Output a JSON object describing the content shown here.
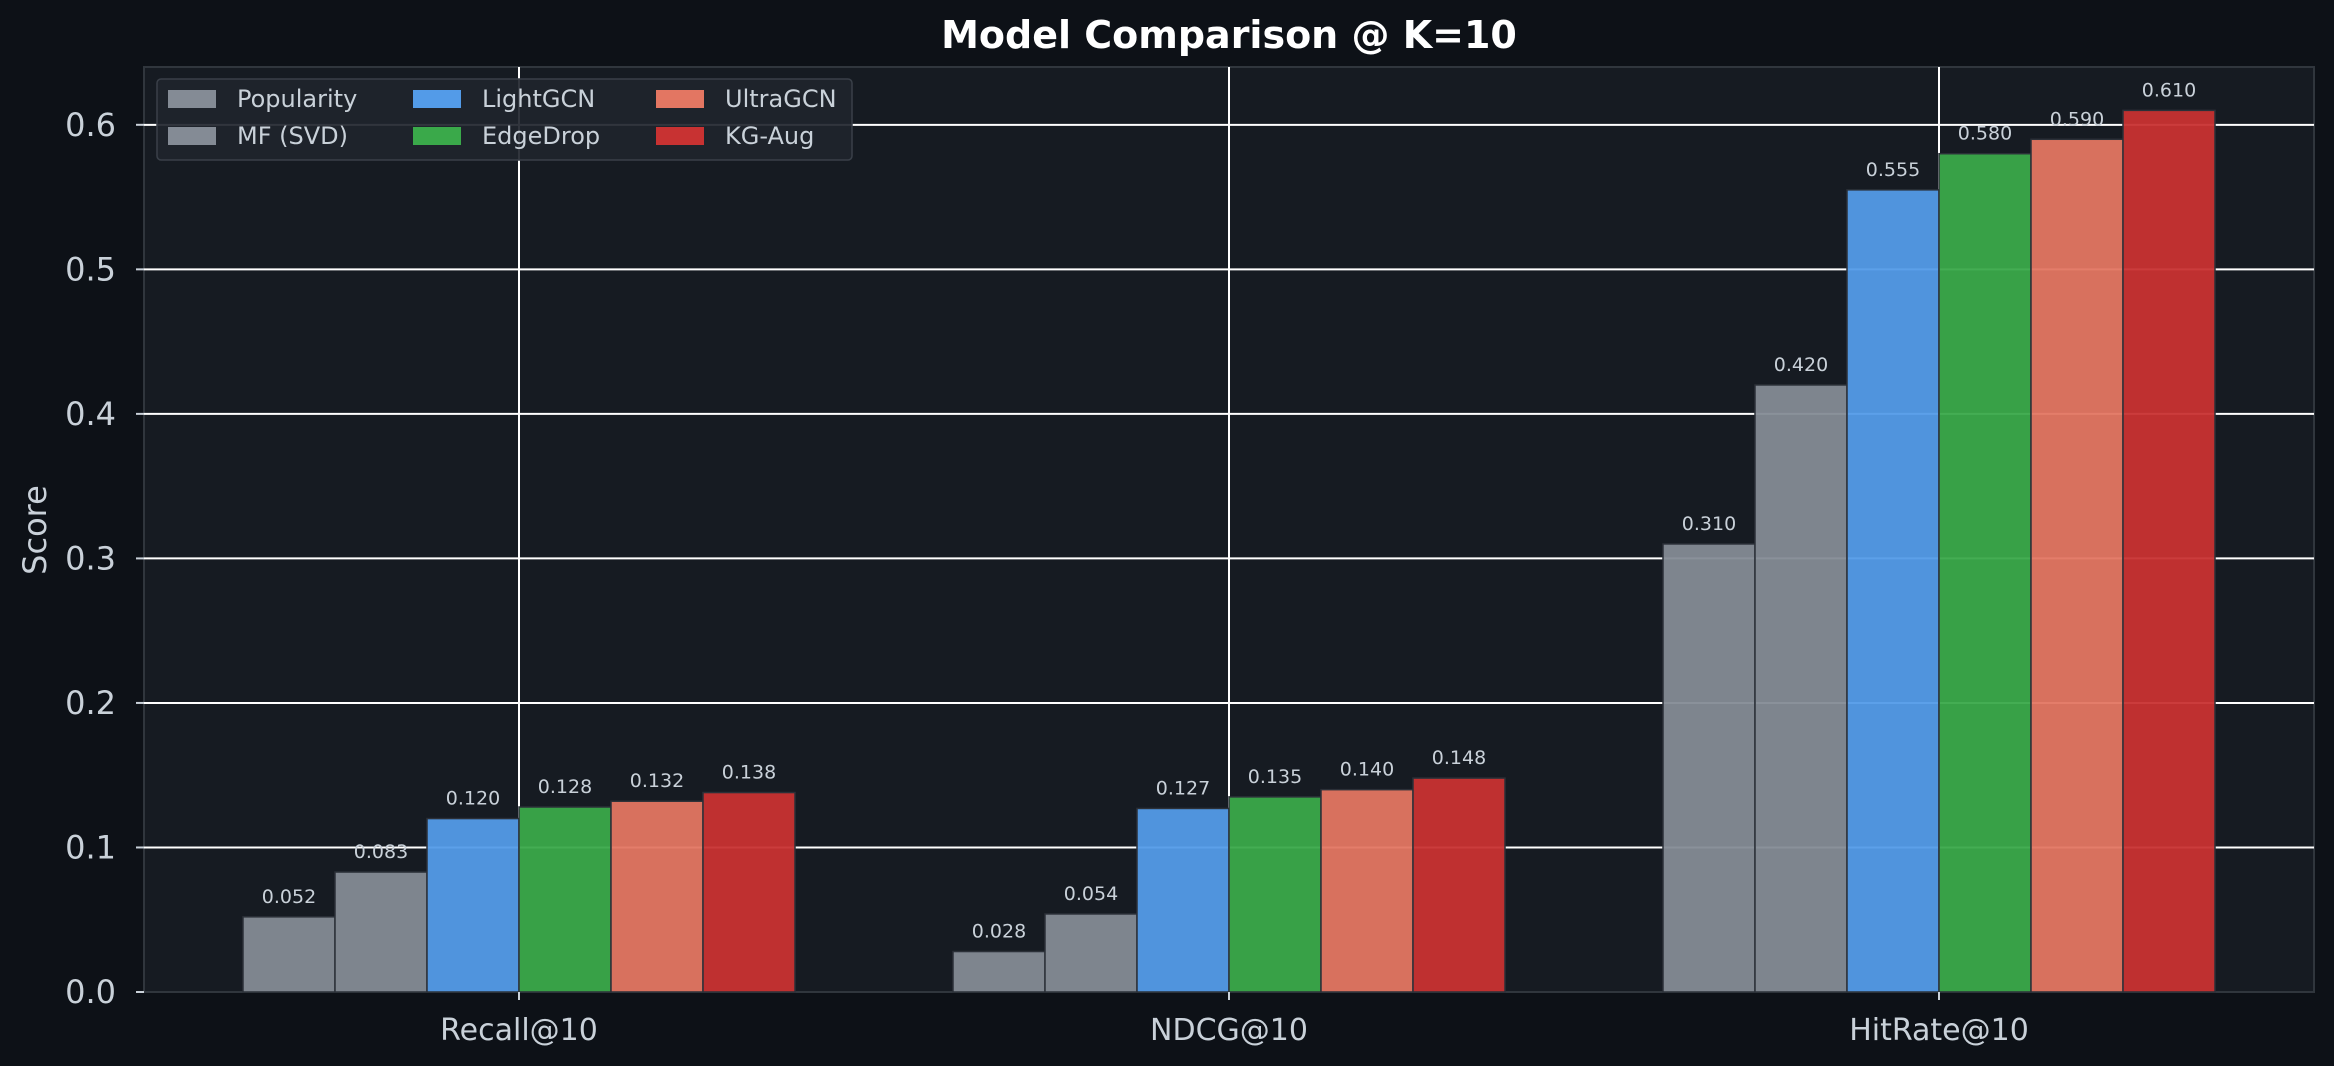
{
  "chart_data": {
    "type": "bar",
    "title": "Model Comparison @ K=10",
    "xlabel": "",
    "ylabel": "Score",
    "ylim": [
      0,
      0.64
    ],
    "yticks": [
      "0.0",
      "0.1",
      "0.2",
      "0.3",
      "0.4",
      "0.5",
      "0.6"
    ],
    "grid": true,
    "legend_position": "top-left",
    "legend_columns": 3,
    "categories": [
      "Recall@10",
      "NDCG@10",
      "HitRate@10"
    ],
    "series": [
      {
        "name": "Popularity",
        "color": "#848b95",
        "values": [
          0.052,
          0.028,
          0.31
        ],
        "labels": [
          "0.052",
          "0.028",
          "0.310"
        ]
      },
      {
        "name": "MF (SVD)",
        "color": "#848b95",
        "values": [
          0.083,
          0.054,
          0.42
        ],
        "labels": [
          "0.083",
          "0.054",
          "0.420"
        ]
      },
      {
        "name": "LightGCN",
        "color": "#539be8",
        "values": [
          0.12,
          0.127,
          0.555
        ],
        "labels": [
          "0.120",
          "0.127",
          "0.555"
        ]
      },
      {
        "name": "EdgeDrop",
        "color": "#3aa94a",
        "values": [
          0.128,
          0.135,
          0.58
        ],
        "labels": [
          "0.128",
          "0.135",
          "0.580"
        ]
      },
      {
        "name": "UltraGCN",
        "color": "#e37662",
        "values": [
          0.132,
          0.14,
          0.59
        ],
        "labels": [
          "0.132",
          "0.140",
          "0.590"
        ]
      },
      {
        "name": "KG-Aug",
        "color": "#c83232",
        "values": [
          0.138,
          0.148,
          0.61
        ],
        "labels": [
          "0.138",
          "0.148",
          "0.610"
        ]
      }
    ],
    "colors": {
      "page_background": "#0d1117",
      "plot_background": "#161b22",
      "grid": "#ffffff",
      "text": "#c9d1d9",
      "title": "#ffffff"
    }
  }
}
